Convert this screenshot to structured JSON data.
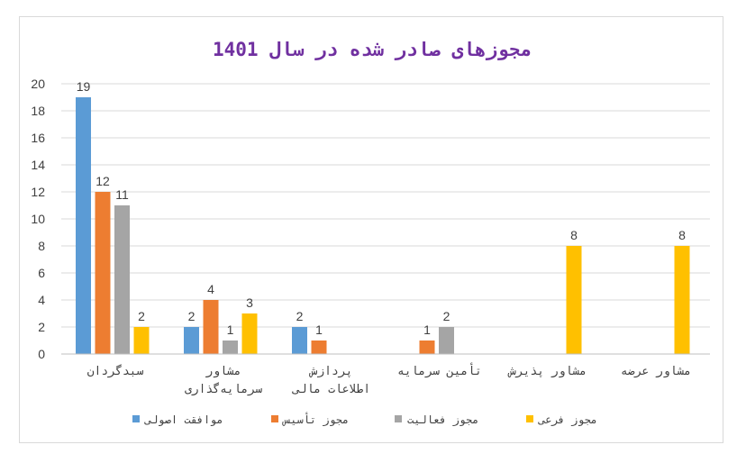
{
  "chart_data": {
    "type": "bar",
    "title": "مجوزهای صادر شده در سال 1401",
    "categories": [
      [
        "سبدگردان"
      ],
      [
        "مشاور",
        "سرمایه‌گذاری"
      ],
      [
        "پردازش",
        "اطلاعات مالی"
      ],
      [
        "تأمین سرمایه"
      ],
      [
        "مشاور پذیرش"
      ],
      [
        "مشاور عرضه"
      ]
    ],
    "series": [
      {
        "name": "موافقت اصولی",
        "color": "#5b9bd5",
        "values": [
          19,
          2,
          2,
          null,
          null,
          null
        ]
      },
      {
        "name": "مجوز تأسیس",
        "color": "#ed7d31",
        "values": [
          12,
          4,
          1,
          1,
          null,
          null
        ]
      },
      {
        "name": "مجوز فعالیت",
        "color": "#a5a5a5",
        "values": [
          11,
          1,
          null,
          2,
          null,
          null
        ]
      },
      {
        "name": "مجوز فرعی",
        "color": "#ffc000",
        "values": [
          2,
          3,
          null,
          null,
          8,
          8
        ]
      }
    ],
    "ylim": [
      0,
      20
    ],
    "yticks": [
      0,
      2,
      4,
      6,
      8,
      10,
      12,
      14,
      16,
      18,
      20
    ],
    "grid": true,
    "legend_position": "bottom",
    "xlabel": "",
    "ylabel": ""
  }
}
